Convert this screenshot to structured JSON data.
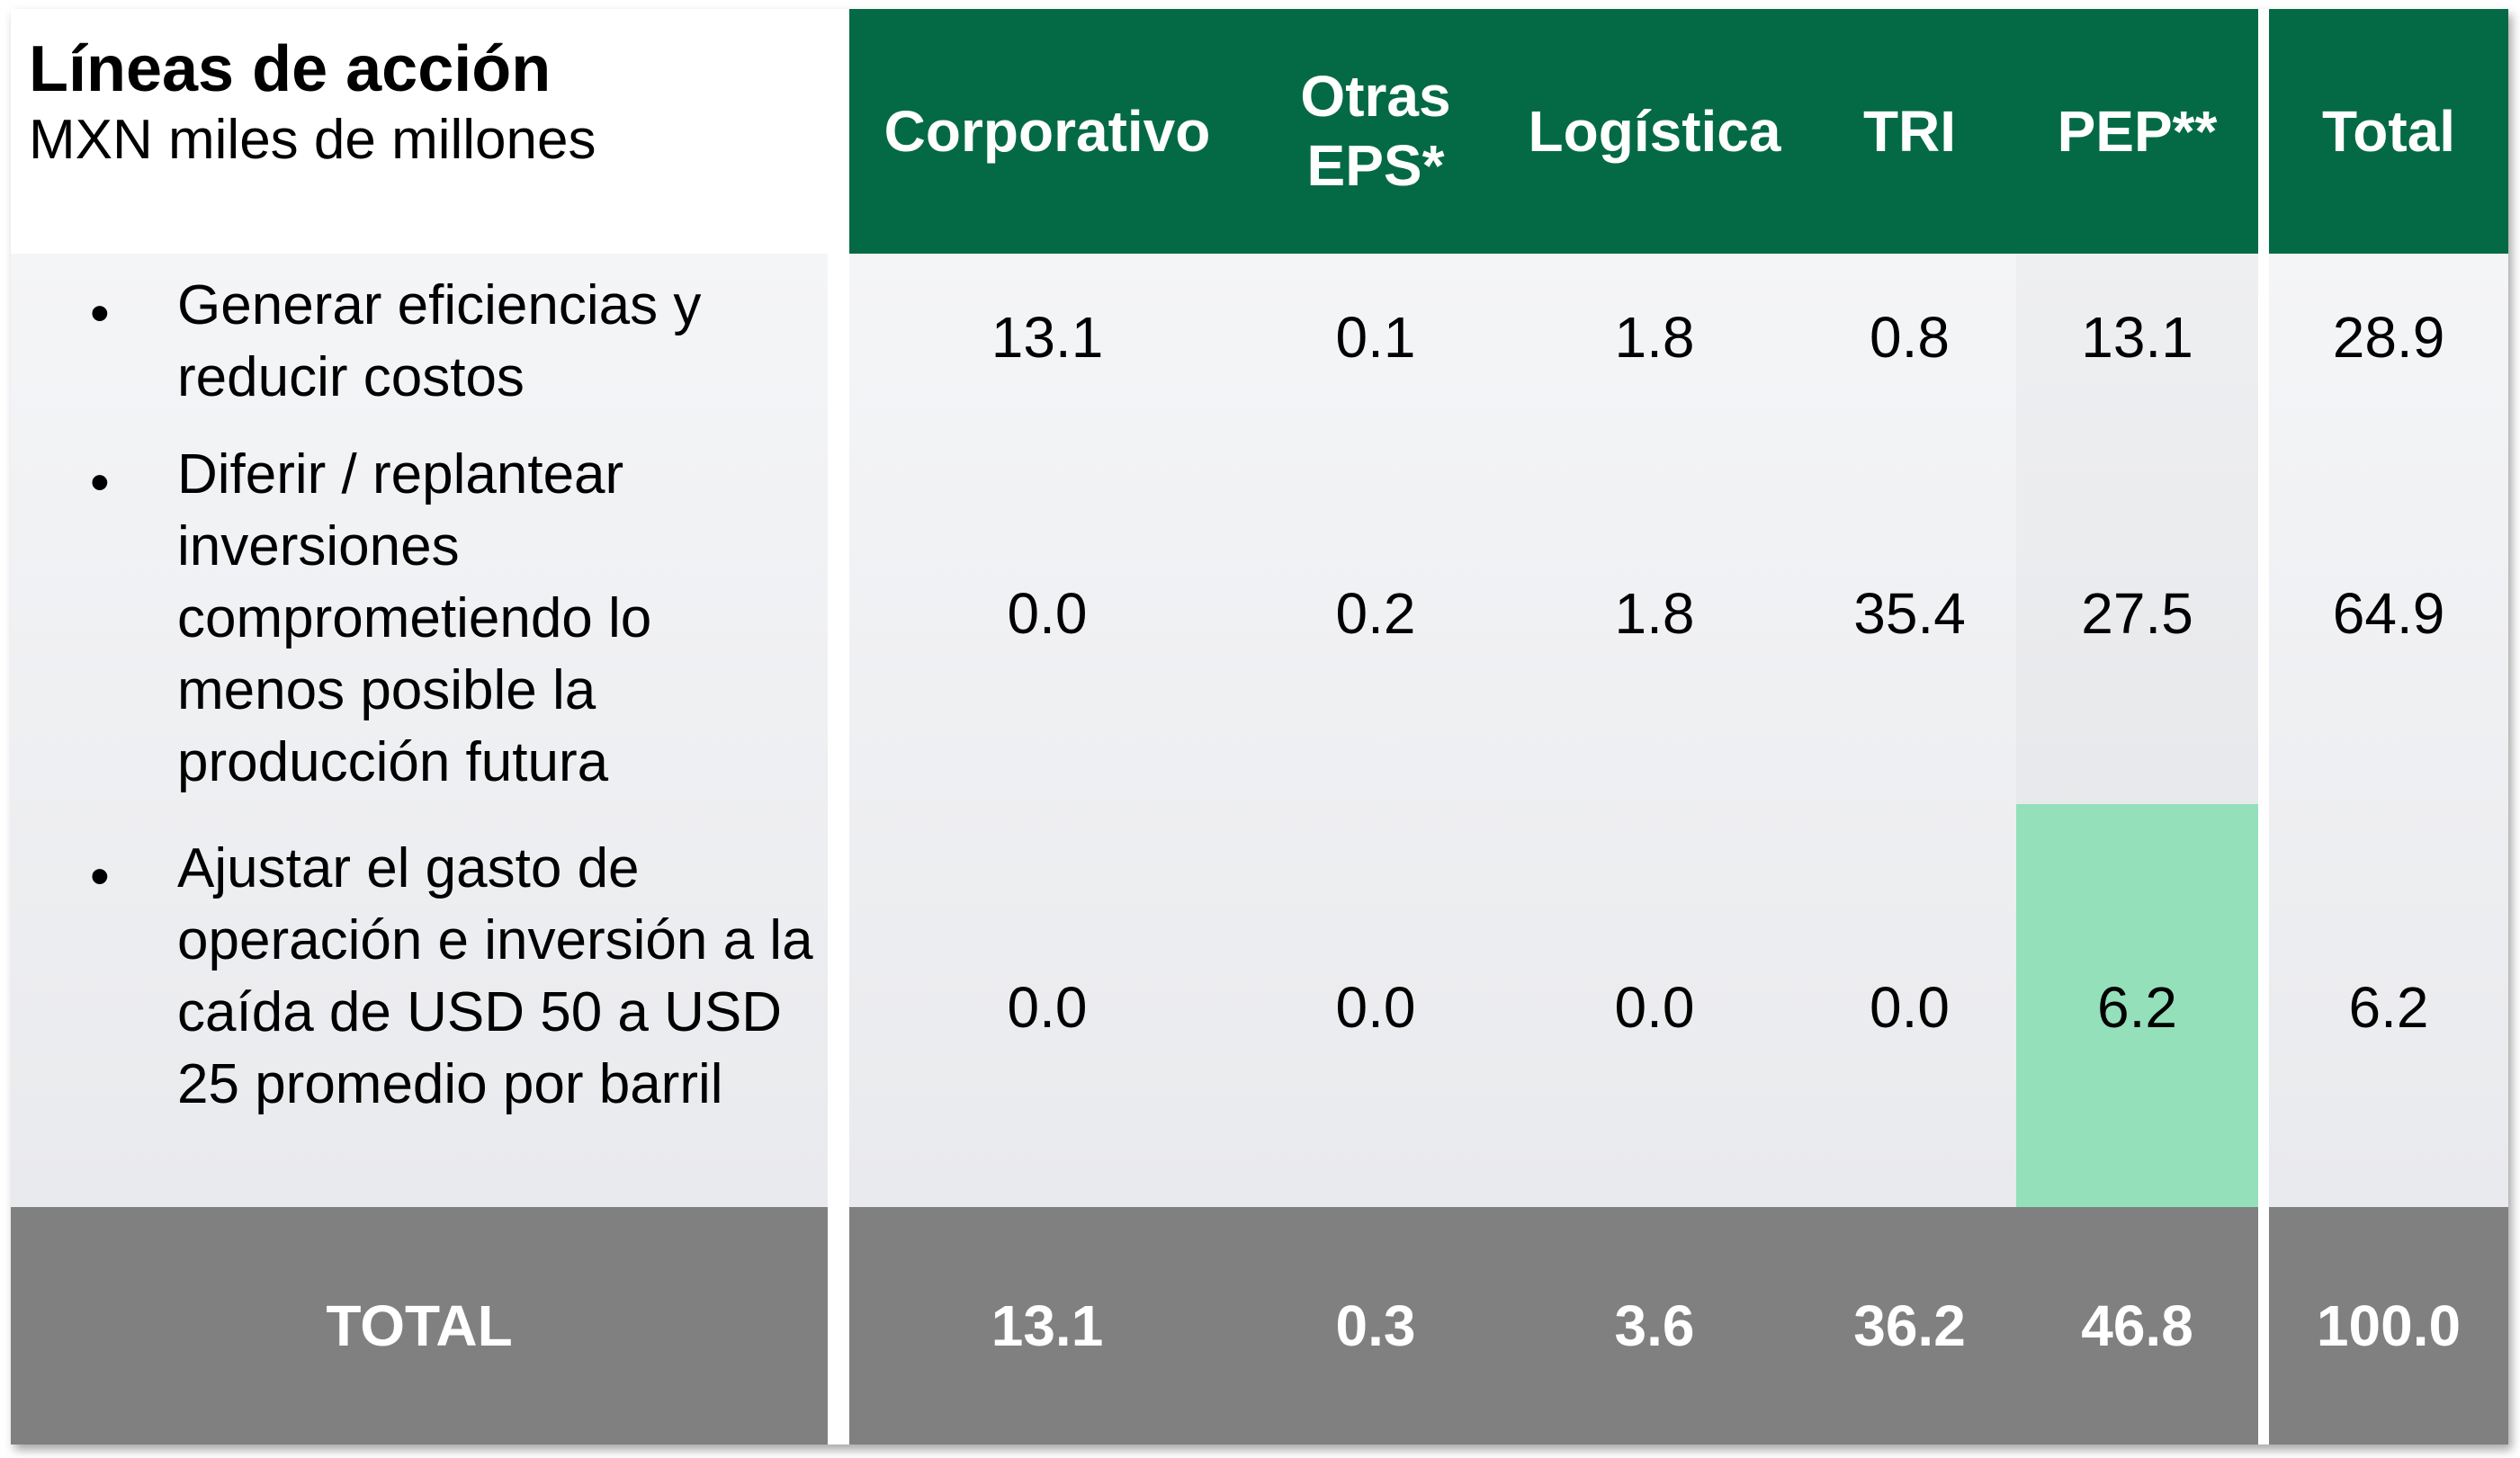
{
  "heading": {
    "title": "Líneas de acción",
    "subtitle": "MXN miles de millones"
  },
  "columns": [
    {
      "label_line1": "Corporativo",
      "label_line2": ""
    },
    {
      "label_line1": "Otras",
      "label_line2": "EPS*"
    },
    {
      "label_line1": "Logística",
      "label_line2": ""
    },
    {
      "label_line1": "TRI",
      "label_line2": ""
    },
    {
      "label_line1": "PEP**",
      "label_line2": ""
    },
    {
      "label_line1": "Total",
      "label_line2": ""
    }
  ],
  "rows": [
    {
      "bullet": "•",
      "label": "Generar eficiencias y reducir costos",
      "values": [
        "13.1",
        "0.1",
        "1.8",
        "0.8",
        "13.1",
        "28.9"
      ]
    },
    {
      "bullet": "•",
      "label": "Diferir / replantear inversiones comprometiendo lo menos posible la producción futura",
      "values": [
        "0.0",
        "0.2",
        "1.8",
        "35.4",
        "27.5",
        "64.9"
      ]
    },
    {
      "bullet": "•",
      "label": "Ajustar el gasto de operación e inversión a la caída de USD 50 a USD 25 promedio por barril",
      "values": [
        "0.0",
        "0.0",
        "0.0",
        "0.0",
        "6.2",
        "6.2"
      ]
    }
  ],
  "total_row": {
    "label": "TOTAL",
    "values": [
      "13.1",
      "0.3",
      "3.6",
      "36.2",
      "46.8",
      "100.0"
    ]
  },
  "colors": {
    "header_green": "#046a46",
    "highlight_green": "#93e0bb",
    "total_gray": "#808080",
    "body_light_gray": "#f0f1f3"
  }
}
